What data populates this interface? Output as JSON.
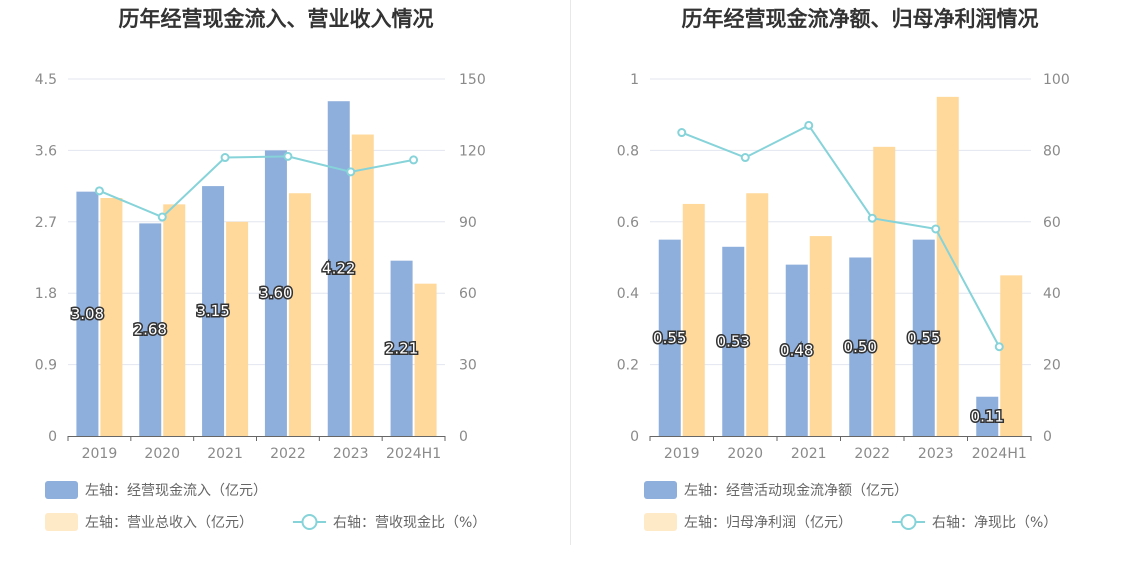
{
  "colors": {
    "bar_primary": "#8eaedb",
    "bar_secondary": "#ffd99b",
    "line": "#86d3d9",
    "grid": "#e3e6ef",
    "axis": "#666666",
    "title": "#333333",
    "tick": "#8a8a8a"
  },
  "chart_data": [
    {
      "type": "bar",
      "title": "历年经营现金流入、营业收入情况",
      "categories": [
        "2019",
        "2020",
        "2021",
        "2022",
        "2023",
        "2024H1"
      ],
      "left_axis": {
        "ticks": [
          "0",
          "0.9",
          "1.8",
          "2.7",
          "3.6",
          "4.5"
        ],
        "ylim": [
          0,
          4.5
        ]
      },
      "right_axis": {
        "ticks": [
          "0",
          "30",
          "60",
          "90",
          "120",
          "150"
        ],
        "ylim": [
          0,
          150
        ]
      },
      "series": [
        {
          "name": "左轴：经营现金流入（亿元）",
          "kind": "bar",
          "axis": "left",
          "color": "#8eaedb",
          "values": [
            3.08,
            2.68,
            3.15,
            3.6,
            4.22,
            2.21
          ],
          "labels": [
            "3.08",
            "2.68",
            "3.15",
            "3.60",
            "4.22",
            "2.21"
          ]
        },
        {
          "name": "左轴：营业总收入（亿元）",
          "kind": "bar",
          "axis": "left",
          "color": "#ffd99b",
          "values": [
            3.0,
            2.92,
            2.7,
            3.06,
            3.8,
            1.92
          ]
        },
        {
          "name": "右轴：营收现金比（%）",
          "kind": "line",
          "axis": "right",
          "color": "#86d3d9",
          "values": [
            103,
            92,
            117,
            117.5,
            111,
            116
          ]
        }
      ],
      "legend": [
        {
          "text": "左轴：经营现金流入（亿元）",
          "kind": "bar",
          "color": "#8eaedb"
        },
        {
          "text": "左轴：营业总收入（亿元）",
          "kind": "bar",
          "color": "#ffd99b"
        },
        {
          "text": "右轴：营收现金比（%）",
          "kind": "line",
          "color": "#86d3d9"
        }
      ],
      "grid": true,
      "legend_position": "bottom"
    },
    {
      "type": "bar",
      "title": "历年经营现金流净额、归母净利润情况",
      "categories": [
        "2019",
        "2020",
        "2021",
        "2022",
        "2023",
        "2024H1"
      ],
      "left_axis": {
        "ticks": [
          "0",
          "0.2",
          "0.4",
          "0.6",
          "0.8",
          "1"
        ],
        "ylim": [
          0,
          1
        ]
      },
      "right_axis": {
        "ticks": [
          "0",
          "20",
          "40",
          "60",
          "80",
          "100"
        ],
        "ylim": [
          0,
          100
        ]
      },
      "series": [
        {
          "name": "左轴：经营活动现金流净额（亿元）",
          "kind": "bar",
          "axis": "left",
          "color": "#8eaedb",
          "values": [
            0.55,
            0.53,
            0.48,
            0.5,
            0.55,
            0.11
          ],
          "labels": [
            "0.55",
            "0.53",
            "0.48",
            "0.50",
            "0.55",
            "0.11"
          ]
        },
        {
          "name": "左轴：归母净利润（亿元）",
          "kind": "bar",
          "axis": "left",
          "color": "#ffd99b",
          "values": [
            0.65,
            0.68,
            0.56,
            0.81,
            0.95,
            0.45
          ]
        },
        {
          "name": "右轴：净现比（%）",
          "kind": "line",
          "axis": "right",
          "color": "#86d3d9",
          "values": [
            85,
            78,
            87,
            61,
            58,
            25
          ]
        }
      ],
      "legend": [
        {
          "text": "左轴：经营活动现金流净额（亿元）",
          "kind": "bar",
          "color": "#8eaedb"
        },
        {
          "text": "左轴：归母净利润（亿元）",
          "kind": "bar",
          "color": "#ffd99b"
        },
        {
          "text": "右轴：净现比（%）",
          "kind": "line",
          "color": "#86d3d9"
        }
      ],
      "grid": true,
      "legend_position": "bottom"
    }
  ]
}
